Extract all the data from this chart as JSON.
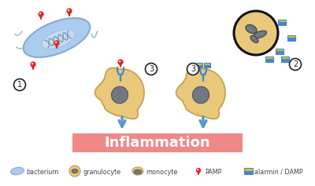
{
  "title": "Inflammation",
  "title_bg": "#f08080",
  "title_fontsize": 13,
  "title_fontweight": "bold",
  "background": "#ffffff",
  "legend_items": [
    "bacterium",
    "granulocyte",
    "monocyte",
    "PAMP",
    "alarmin / DAMP"
  ],
  "bacterium_color": "#aaccee",
  "bacterium_outline": "#88aacc",
  "cell_fill": "#e8c87a",
  "cell_outline": "#c8a050",
  "nucleus_color": "#707880",
  "pamp_color": "#dd2222",
  "damp_yellow": "#e8c020",
  "damp_blue": "#4488cc",
  "arrow_color": "#5599cc",
  "receptor_color": "#4488cc",
  "circle_color": "#ffffff",
  "circle_outline": "#222222",
  "inflammation_box_color": "#f08888",
  "legend_text_color": "#444444"
}
